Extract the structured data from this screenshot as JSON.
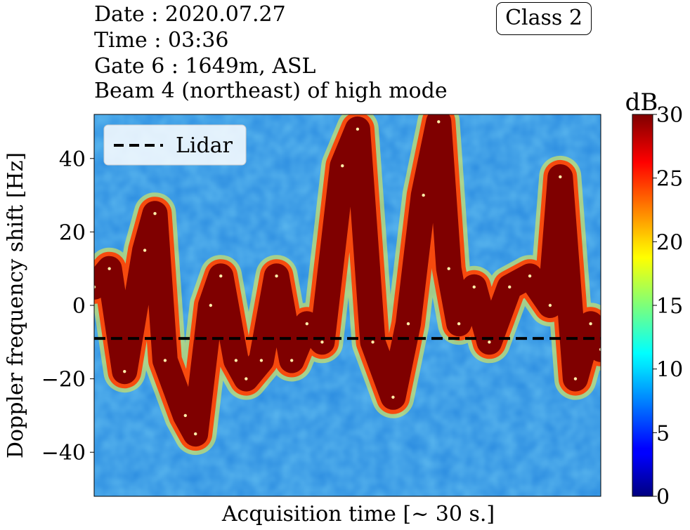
{
  "header": {
    "date_line": "Date : 2020.07.27",
    "time_line": "Time : 03:36",
    "gate_line": "Gate 6 : 1649m, ASL",
    "beam_line": "Beam 4 (northeast) of high mode"
  },
  "class_label": "Class 2",
  "chart_data": {
    "type": "heatmap",
    "title": "",
    "xlabel": "Acquisition time [~ 30 s.]",
    "ylabel": "Doppler frequency shift [Hz]",
    "ylim": [
      -52,
      52
    ],
    "yticks": [
      {
        "value": 40,
        "label": "40"
      },
      {
        "value": 20,
        "label": "20"
      },
      {
        "value": 0,
        "label": "0"
      },
      {
        "value": -20,
        "label": "−20"
      },
      {
        "value": -40,
        "label": "−40"
      }
    ],
    "colorbar": {
      "label": "dB",
      "range": [
        0,
        30
      ],
      "ticks": [
        "0",
        "5",
        "10",
        "15",
        "20",
        "25",
        "30"
      ],
      "colormap": "jet"
    },
    "lidar_line": {
      "name": "Lidar",
      "y": -9,
      "style": "dashed",
      "color": "#000000"
    },
    "legend": {
      "position": "top-left",
      "entries": [
        "Lidar"
      ]
    },
    "signal_track": {
      "description_units": "x = fraction of acquisition time, y = Doppler shift in Hz",
      "points": [
        [
          0.0,
          5
        ],
        [
          0.03,
          10
        ],
        [
          0.06,
          -18
        ],
        [
          0.1,
          15
        ],
        [
          0.12,
          25
        ],
        [
          0.14,
          -15
        ],
        [
          0.18,
          -30
        ],
        [
          0.2,
          -35
        ],
        [
          0.23,
          0
        ],
        [
          0.25,
          8
        ],
        [
          0.28,
          -15
        ],
        [
          0.3,
          -20
        ],
        [
          0.33,
          -15
        ],
        [
          0.36,
          8
        ],
        [
          0.39,
          -15
        ],
        [
          0.42,
          -5
        ],
        [
          0.45,
          -10
        ],
        [
          0.49,
          38
        ],
        [
          0.52,
          48
        ],
        [
          0.55,
          -10
        ],
        [
          0.59,
          -25
        ],
        [
          0.62,
          -5
        ],
        [
          0.65,
          30
        ],
        [
          0.68,
          50
        ],
        [
          0.7,
          10
        ],
        [
          0.72,
          -5
        ],
        [
          0.75,
          5
        ],
        [
          0.78,
          -10
        ],
        [
          0.82,
          5
        ],
        [
          0.86,
          8
        ],
        [
          0.9,
          0
        ],
        [
          0.92,
          35
        ],
        [
          0.95,
          -20
        ],
        [
          0.98,
          -5
        ],
        [
          1.0,
          -12
        ]
      ],
      "peak_level_db": 30
    }
  }
}
